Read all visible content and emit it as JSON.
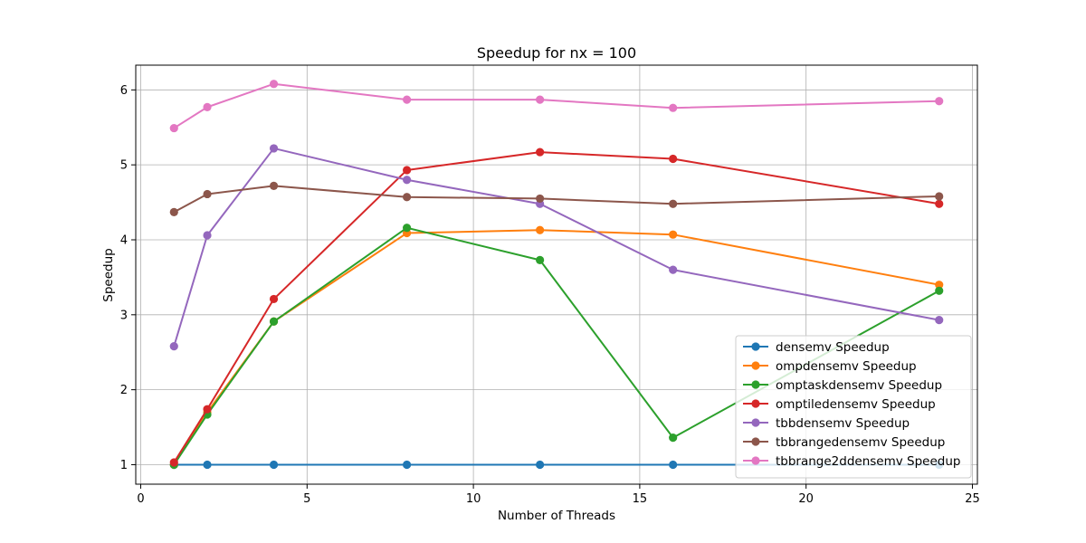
{
  "chart_data": {
    "type": "line",
    "title": "Speedup for nx = 100",
    "xlabel": "Number of Threads",
    "ylabel": "Speedup",
    "xlim": [
      -0.15,
      25.15
    ],
    "ylim": [
      0.74,
      6.33
    ],
    "xticks": [
      0,
      5,
      10,
      15,
      20,
      25
    ],
    "yticks": [
      1,
      2,
      3,
      4,
      5,
      6
    ],
    "grid": true,
    "legend_position": "lower-right",
    "x": [
      1,
      2,
      4,
      8,
      12,
      16,
      24
    ],
    "series": [
      {
        "name": "densemv Speedup",
        "color": "#1f77b4",
        "values": [
          1.0,
          1.0,
          1.0,
          1.0,
          1.0,
          1.0,
          1.0
        ]
      },
      {
        "name": "ompdensemv Speedup",
        "color": "#ff7f0e",
        "values": [
          1.0,
          1.7,
          2.91,
          4.09,
          4.13,
          4.07,
          3.4
        ]
      },
      {
        "name": "omptaskdensemv Speedup",
        "color": "#2ca02c",
        "values": [
          1.0,
          1.67,
          2.91,
          4.16,
          3.73,
          1.36,
          3.32
        ]
      },
      {
        "name": "omptiledensemv Speedup",
        "color": "#d62728",
        "values": [
          1.03,
          1.74,
          3.21,
          4.93,
          5.17,
          5.08,
          4.48
        ]
      },
      {
        "name": "tbbdensemv Speedup",
        "color": "#9467bd",
        "values": [
          2.58,
          4.06,
          5.22,
          4.8,
          4.48,
          3.6,
          2.93
        ]
      },
      {
        "name": "tbbrangedensemv Speedup",
        "color": "#8c564b",
        "values": [
          4.37,
          4.61,
          4.72,
          4.57,
          4.55,
          4.48,
          4.58
        ]
      },
      {
        "name": "tbbrange2ddensemv Speedup",
        "color": "#e377c2",
        "values": [
          5.49,
          5.77,
          6.08,
          5.87,
          5.87,
          5.76,
          5.85
        ]
      }
    ]
  }
}
